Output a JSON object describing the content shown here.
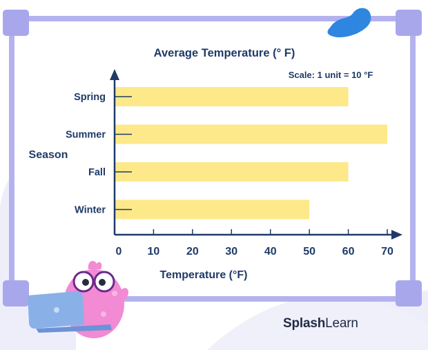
{
  "chart_data": {
    "type": "bar",
    "orientation": "horizontal",
    "title": "Average Temperature (° F)",
    "scale_note": "Scale: 1 unit = 10 °F",
    "xlabel": "Temperature (°F)",
    "ylabel": "Season",
    "categories": [
      "Spring",
      "Summer",
      "Fall",
      "Winter"
    ],
    "values": [
      60,
      70,
      60,
      50
    ],
    "x_ticks": [
      0,
      10,
      20,
      30,
      40,
      50,
      60,
      70
    ],
    "xlim": [
      0,
      70
    ],
    "grid": false,
    "colors": {
      "bar": "#fde98a",
      "axis": "#1f3a68",
      "frame": "#b4b2ee",
      "text": "#1f3a68"
    }
  },
  "brand": {
    "part1": "Splash",
    "part2": "Learn"
  }
}
